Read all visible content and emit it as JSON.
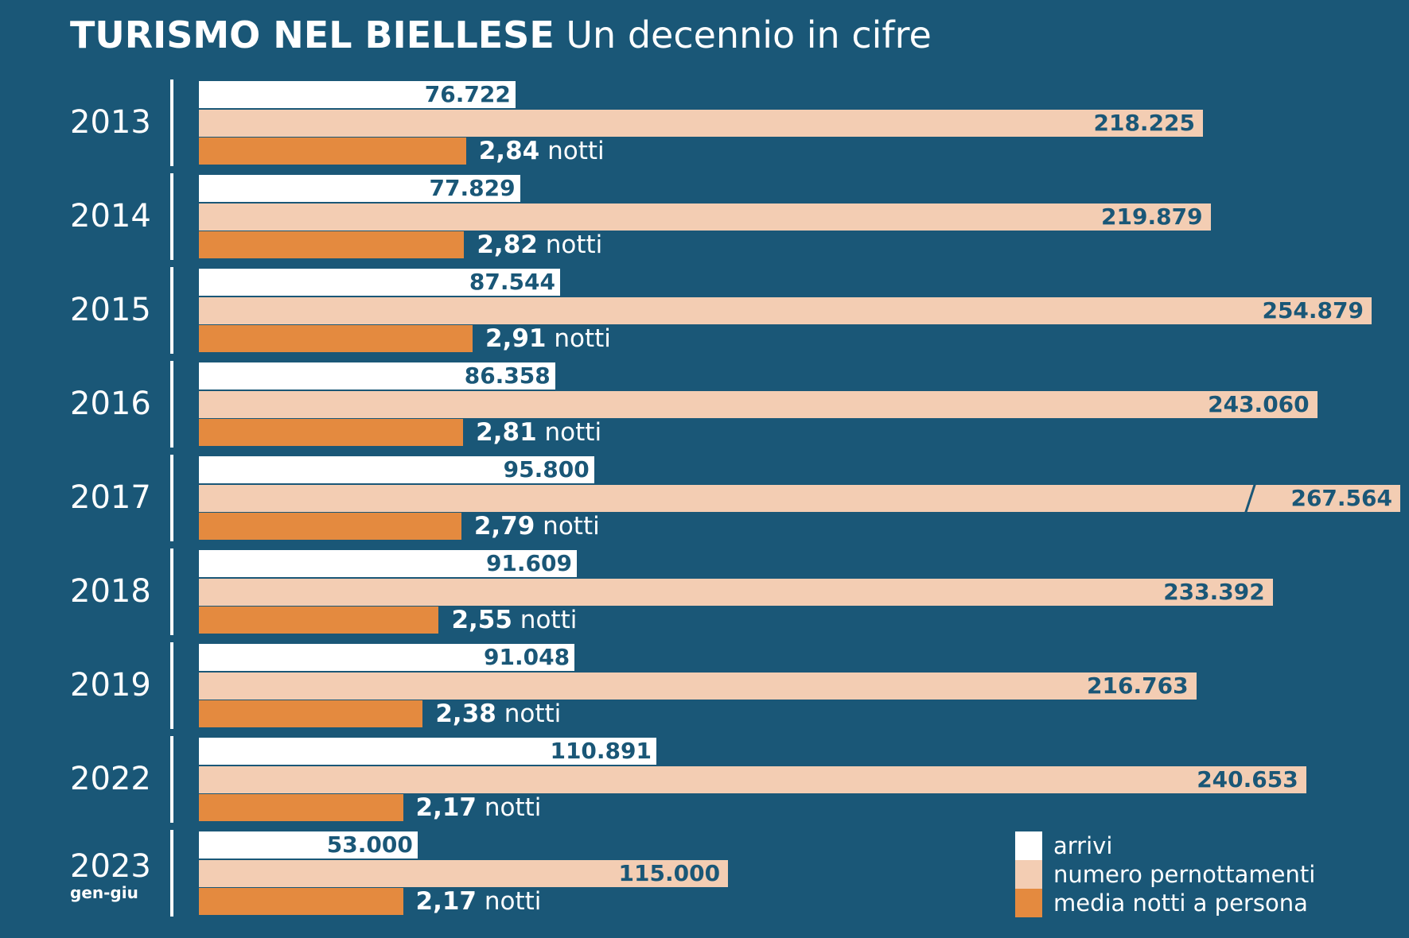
{
  "title": {
    "bold": "TURISMO NEL BIELLESE",
    "subtitle": "Un decennio in cifre"
  },
  "colors": {
    "background": "#1a5777",
    "arrivi": "#ffffff",
    "pernottamenti": "#f3cdb3",
    "media": "#e48a3f",
    "value_text": "#1a5777"
  },
  "legend": [
    {
      "key": "arrivi",
      "label": "arrivi"
    },
    {
      "key": "pernott",
      "label": "numero pernottamenti"
    },
    {
      "key": "media",
      "label": "media notti a persona"
    }
  ],
  "chart_data": {
    "type": "bar",
    "orientation": "horizontal",
    "categories": [
      "2013",
      "2014",
      "2015",
      "2016",
      "2017",
      "2018",
      "2019",
      "2022",
      "2023"
    ],
    "category_notes": {
      "2023": "gen-giu"
    },
    "series": [
      {
        "name": "arrivi",
        "values": [
          76722,
          77829,
          87544,
          86358,
          95800,
          91609,
          91048,
          110891,
          53000
        ],
        "labels": [
          "76.722",
          "77.829",
          "87.544",
          "86.358",
          "95.800",
          "91.609",
          "91.048",
          "110.891",
          "53.000"
        ]
      },
      {
        "name": "numero pernottamenti",
        "values": [
          218225,
          219879,
          254879,
          243060,
          267564,
          233392,
          216763,
          240653,
          115000
        ],
        "labels": [
          "218.225",
          "219.879",
          "254.879",
          "243.060",
          "267.564",
          "233.392",
          "216.763",
          "240.653",
          "115.000"
        ]
      },
      {
        "name": "media notti a persona",
        "values": [
          2.84,
          2.82,
          2.91,
          2.81,
          2.79,
          2.55,
          2.38,
          2.17,
          2.17
        ],
        "labels": [
          "2,84",
          "2,82",
          "2,91",
          "2,81",
          "2,79",
          "2,55",
          "2,38",
          "2,17",
          "2,17"
        ],
        "unit": "notti"
      }
    ],
    "broken_bar": {
      "series": "numero pernottamenti",
      "category": "2017"
    },
    "legend_position": "bottom-right"
  }
}
